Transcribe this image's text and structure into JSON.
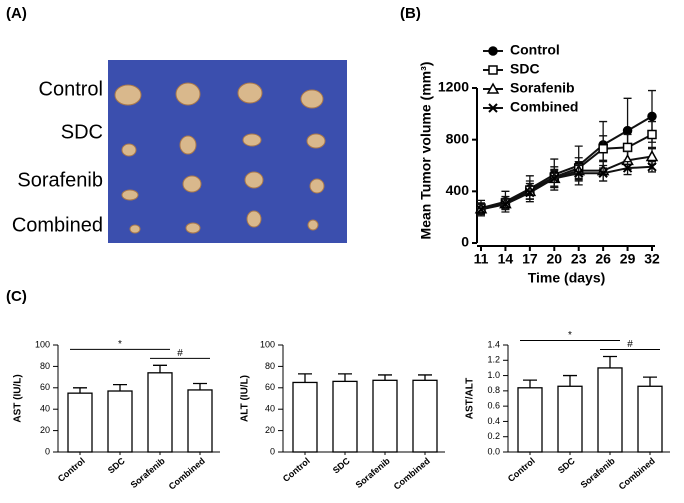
{
  "panel_a": {
    "panel_label": "(A)",
    "groups": [
      "Control",
      "SDC",
      "Sorafenib",
      "Combined"
    ]
  },
  "chart_data": [
    {
      "type": "line",
      "panel_label": "(B)",
      "xlabel": "Time (days)",
      "ylabel": "Mean Tumor volume (mm³)",
      "x": [
        11,
        14,
        17,
        20,
        23,
        26,
        29,
        32
      ],
      "xlim": [
        11,
        32
      ],
      "xticks": [
        11,
        14,
        17,
        20,
        23,
        26,
        29,
        32
      ],
      "ylim": [
        0,
        1200
      ],
      "yticks": [
        0,
        400,
        800,
        1200
      ],
      "series": [
        {
          "name": "Control",
          "color": "#111111",
          "marker": "circle-filled",
          "values": [
            270,
            320,
            420,
            530,
            600,
            760,
            870,
            980
          ],
          "errors": [
            60,
            80,
            100,
            120,
            150,
            180,
            250,
            200
          ]
        },
        {
          "name": "SDC",
          "color": "#111111",
          "marker": "square-open",
          "values": [
            270,
            310,
            410,
            510,
            580,
            730,
            740,
            840
          ],
          "errors": [
            40,
            50,
            70,
            80,
            80,
            100,
            100,
            100
          ]
        },
        {
          "name": "Sorafenib",
          "color": "#111111",
          "marker": "triangle-open",
          "values": [
            265,
            305,
            400,
            500,
            560,
            560,
            640,
            670
          ],
          "errors": [
            40,
            40,
            60,
            70,
            70,
            80,
            70,
            60
          ]
        },
        {
          "name": "Combined",
          "color": "#111111",
          "marker": "x",
          "values": [
            260,
            300,
            390,
            500,
            540,
            540,
            580,
            590
          ],
          "errors": [
            40,
            40,
            50,
            60,
            60,
            60,
            50,
            40
          ]
        }
      ]
    },
    {
      "type": "bar",
      "panel_label": "(C)",
      "ylabel": "AST (IU/L)",
      "categories": [
        "Control",
        "SDC",
        "Sorafenib",
        "Combined"
      ],
      "values": [
        55,
        57,
        74,
        58
      ],
      "errors": [
        5,
        6,
        7,
        6
      ],
      "color": "#ffffff",
      "ylim": [
        0,
        100
      ],
      "yticks": [
        0,
        20,
        40,
        60,
        80,
        100
      ],
      "significance": [
        {
          "text": "*",
          "between": [
            "Control",
            "Sorafenib"
          ]
        },
        {
          "text": "#",
          "between": [
            "Sorafenib",
            "Combined"
          ]
        }
      ]
    },
    {
      "type": "bar",
      "ylabel": "ALT (IU/L)",
      "categories": [
        "Control",
        "SDC",
        "Sorafenib",
        "Combined"
      ],
      "values": [
        65,
        66,
        67,
        67
      ],
      "errors": [
        8,
        7,
        5,
        5
      ],
      "color": "#ffffff",
      "ylim": [
        0,
        100
      ],
      "yticks": [
        0,
        20,
        40,
        60,
        80,
        100
      ]
    },
    {
      "type": "bar",
      "ylabel": "AST/ALT",
      "categories": [
        "Control",
        "SDC",
        "Sorafenib",
        "Combined"
      ],
      "values": [
        0.84,
        0.86,
        1.1,
        0.86
      ],
      "errors": [
        0.1,
        0.14,
        0.15,
        0.12
      ],
      "color": "#ffffff",
      "ylim": [
        0,
        1.4
      ],
      "yticks": [
        {
          "value": 0,
          "label": "0.0"
        },
        0.2,
        0.4,
        0.6,
        0.8,
        {
          "value": 1,
          "label": "1.0"
        },
        1.2,
        1.4
      ],
      "significance": [
        {
          "text": "*",
          "between": [
            "Control",
            "Sorafenib"
          ]
        },
        {
          "text": "#",
          "between": [
            "Sorafenib",
            "Combined"
          ]
        }
      ]
    }
  ]
}
